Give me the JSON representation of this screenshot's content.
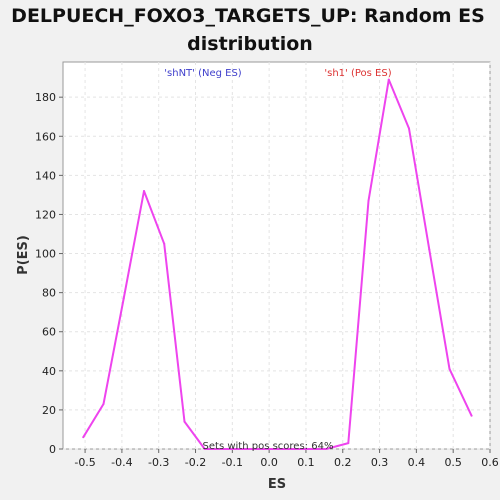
{
  "chart_data": {
    "type": "line",
    "title_lines": [
      "DELPUECH_FOXO3_TARGETS_UP: Random ES",
      "distribution"
    ],
    "xlabel": "ES",
    "ylabel": "P(ES)",
    "xlim": [
      -0.56,
      0.6
    ],
    "ylim": [
      0,
      198
    ],
    "xticks": [
      -0.5,
      -0.4,
      -0.3,
      -0.2,
      -0.1,
      0.0,
      0.1,
      0.2,
      0.3,
      0.4,
      0.5,
      0.6
    ],
    "xtick_labels": [
      "-0.5",
      "-0.4",
      "-0.3",
      "-0.2",
      "-0.1",
      "0.0",
      "0.1",
      "0.2",
      "0.3",
      "0.4",
      "0.5",
      "0.6"
    ],
    "yticks": [
      0,
      20,
      40,
      60,
      80,
      100,
      120,
      140,
      160,
      180
    ],
    "ytick_labels": [
      "0",
      "20",
      "40",
      "60",
      "80",
      "100",
      "120",
      "140",
      "160",
      "180"
    ],
    "grid": true,
    "series": [
      {
        "color": "#ee44ee",
        "x": [
          -0.505,
          -0.45,
          -0.395,
          -0.34,
          -0.285,
          -0.23,
          -0.175,
          -0.12,
          -0.065,
          -0.01,
          0.045,
          0.1,
          0.155,
          0.215,
          0.27,
          0.325,
          0.38,
          0.435,
          0.49,
          0.55
        ],
        "y": [
          6,
          23,
          77,
          132,
          105,
          14,
          0,
          0,
          0,
          0,
          0,
          0,
          0,
          3,
          127,
          189,
          164,
          102,
          41,
          17
        ]
      }
    ],
    "annotations": {
      "neg_label": "'shNT' (Neg ES)",
      "neg_color": "#4040cc",
      "pos_label": "'sh1' (Pos ES)",
      "pos_color": "#dd3333",
      "pos_scores_text": "Sets with pos scores: 64%"
    }
  }
}
